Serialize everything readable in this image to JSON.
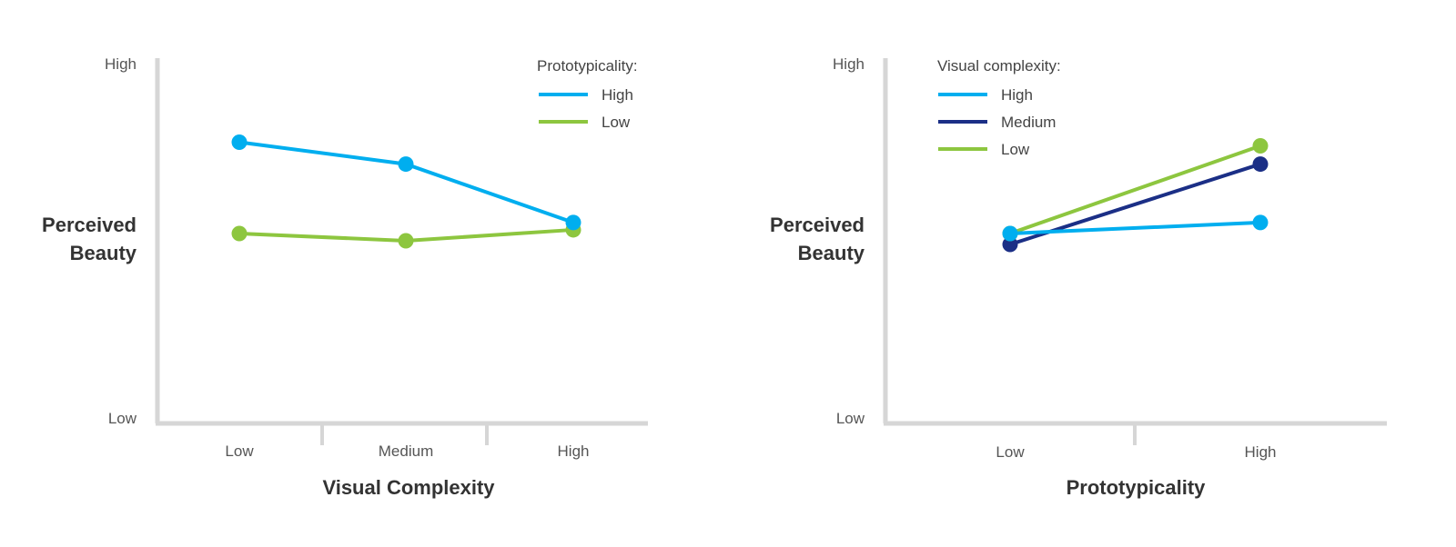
{
  "chart_data": [
    {
      "type": "line",
      "xlabel": "Visual Complexity",
      "ylabel": [
        "Perceived",
        "Beauty"
      ],
      "ytick_high": "High",
      "ytick_low": "Low",
      "ylim": [
        0,
        100
      ],
      "categories": [
        "Low",
        "Medium",
        "High"
      ],
      "legend_title": "Prototypicality:",
      "legend_position": "top-right",
      "series": [
        {
          "name": "High",
          "color": "#00aeef",
          "values": [
            77,
            71,
            55
          ]
        },
        {
          "name": "Low",
          "color": "#8dc63f",
          "values": [
            52,
            50,
            53
          ]
        }
      ]
    },
    {
      "type": "line",
      "xlabel": "Prototypicality",
      "ylabel": [
        "Perceived",
        "Beauty"
      ],
      "ytick_high": "High",
      "ytick_low": "Low",
      "ylim": [
        0,
        100
      ],
      "categories": [
        "Low",
        "High"
      ],
      "legend_title": "Visual complexity:",
      "legend_position": "top-left",
      "series": [
        {
          "name": "High",
          "color": "#00aeef",
          "values": [
            52,
            55
          ]
        },
        {
          "name": "Medium",
          "color": "#1b2f86",
          "values": [
            49,
            71
          ]
        },
        {
          "name": "Low",
          "color": "#8dc63f",
          "values": [
            52,
            76
          ]
        }
      ]
    }
  ]
}
